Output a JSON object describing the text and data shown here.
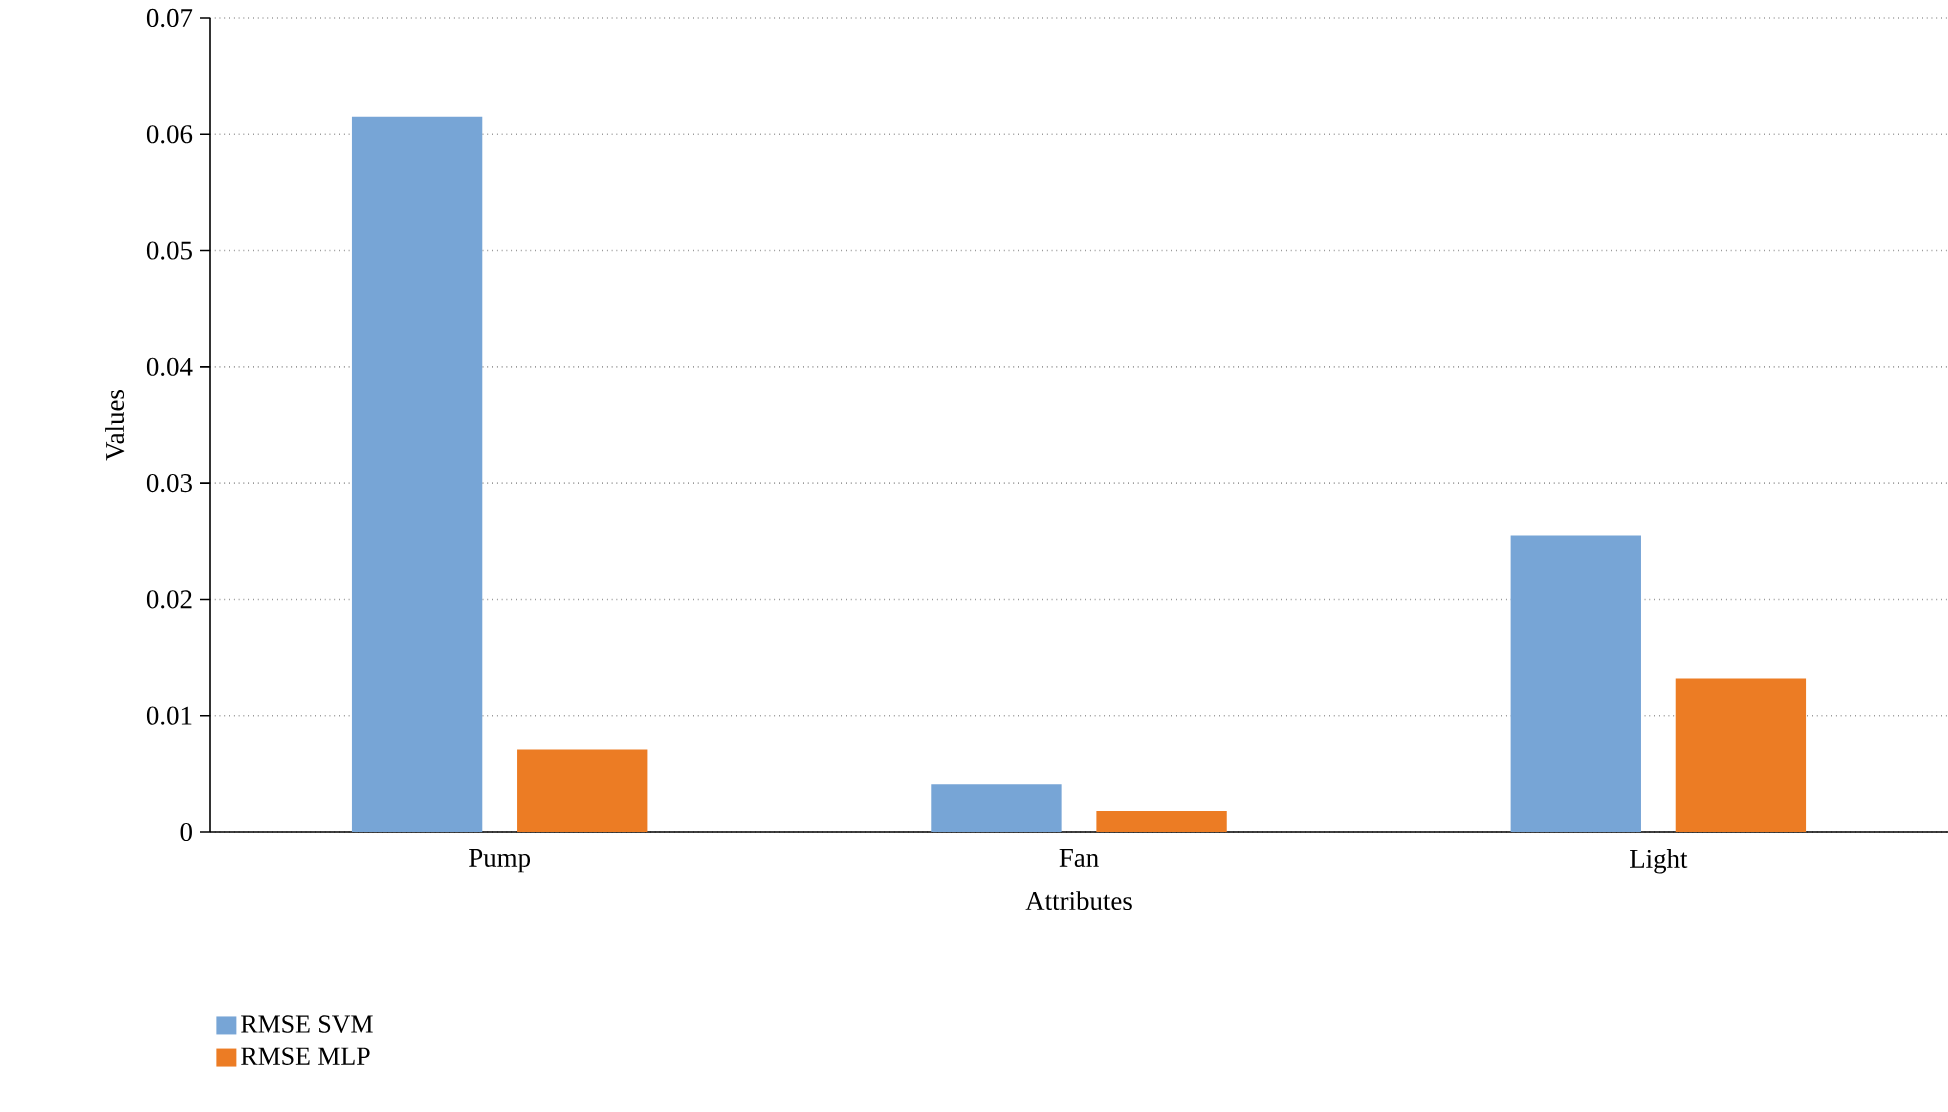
{
  "chart_data": {
    "type": "bar",
    "xlabel": "Attributes",
    "ylabel": "Values",
    "categories": [
      "Pump",
      "Fan",
      "Light"
    ],
    "series": [
      {
        "name": "RMSE SVM",
        "color": "#77a5d6",
        "values": [
          0.0615,
          0.0041,
          0.0255
        ]
      },
      {
        "name": "RMSE MLP",
        "color": "#ec7c24",
        "values": [
          0.0071,
          0.0018,
          0.0132
        ]
      }
    ],
    "ylim": [
      0,
      0.07
    ],
    "yticks": [
      0,
      0.01,
      0.02,
      0.03,
      0.04,
      0.05,
      0.06,
      0.07
    ],
    "grid": "y",
    "legend": "bottom left"
  }
}
